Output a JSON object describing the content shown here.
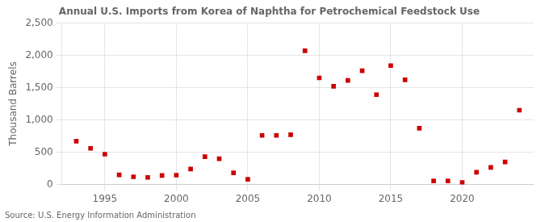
{
  "chart_data": {
    "type": "scatter",
    "title": "Annual U.S. Imports from Korea of Naphtha for Petrochemical Feedstock Use",
    "ylabel": "Thousand Barrels",
    "annotations": [
      "Source: U.S. Energy Information Administration"
    ],
    "x": [
      1993,
      1994,
      1995,
      1996,
      1997,
      1998,
      1999,
      2000,
      2001,
      2002,
      2003,
      2004,
      2005,
      2006,
      2007,
      2008,
      2009,
      2010,
      2011,
      2012,
      2013,
      2014,
      2015,
      2016,
      2017,
      2018,
      2019,
      2020,
      2021,
      2022,
      2023,
      2024
    ],
    "values": [
      670,
      560,
      470,
      150,
      120,
      110,
      140,
      145,
      240,
      430,
      400,
      180,
      80,
      760,
      760,
      770,
      2070,
      1650,
      1520,
      1610,
      1760,
      1390,
      1840,
      1620,
      870,
      55,
      55,
      30,
      190,
      265,
      350,
      1150
    ],
    "color": "#CC0000",
    "marker": "square",
    "xlim": [
      1992,
      2025
    ],
    "ylim": [
      0,
      2500
    ],
    "xticks": [
      1995,
      2000,
      2005,
      2010,
      2015,
      2020
    ],
    "yticks": [
      0,
      500,
      {
        "value": 1000,
        "label": "1,000"
      },
      {
        "value": 1500,
        "label": "1,500"
      },
      {
        "value": 2000,
        "label": "2,000"
      },
      {
        "value": 2500,
        "label": "2,500"
      }
    ],
    "grid": true
  }
}
